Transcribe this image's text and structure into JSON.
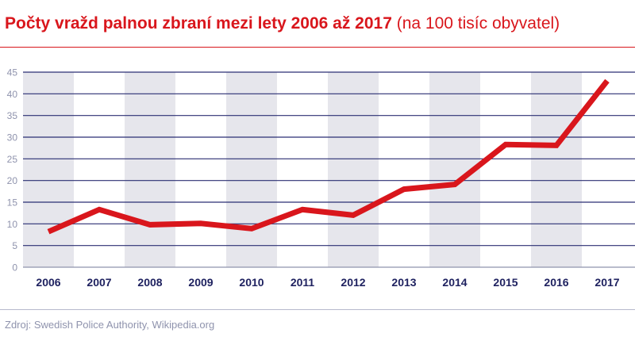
{
  "title": {
    "main": "Počty vražd palnou zbraní mezi lety 2006 až 2017",
    "sub": "(na 100 tisíc obyvatel)"
  },
  "source": "Zdroj: Swedish Police Authority, Wikipedia.org",
  "colors": {
    "line": "#d9161c",
    "grid": "#2b2f73",
    "band": "#e6e6ec",
    "ticks": "#8f93ad",
    "years": "#1f2260"
  },
  "chart_data": {
    "type": "line",
    "title": "Počty vražd palnou zbraní mezi lety 2006 až 2017 (na 100 tisíc obyvatel)",
    "categories": [
      "2006",
      "2007",
      "2008",
      "2009",
      "2010",
      "2011",
      "2012",
      "2013",
      "2014",
      "2015",
      "2016",
      "2017"
    ],
    "values": [
      8.2,
      13.3,
      9.8,
      10.1,
      8.9,
      13.3,
      12.0,
      18.0,
      19.1,
      28.3,
      28.1,
      43.0
    ],
    "ylim": [
      0,
      45
    ],
    "yticks": [
      0,
      5,
      10,
      15,
      20,
      25,
      30,
      35,
      40,
      45
    ],
    "grid": true,
    "alternating_bands": true
  }
}
